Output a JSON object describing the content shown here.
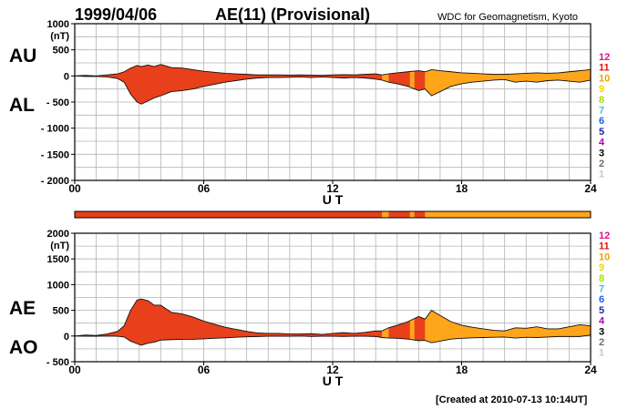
{
  "header": {
    "date": "1999/04/06",
    "title": "AE(11) (Provisional)",
    "source": "WDC for Geomagnetism, Kyoto"
  },
  "footer": {
    "created": "[Created at 2010-07-13 10:14UT]"
  },
  "legend": {
    "items": [
      {
        "label": "12",
        "color": "#e0118a"
      },
      {
        "label": "11",
        "color": "#e8120c"
      },
      {
        "label": "10",
        "color": "#f5a000"
      },
      {
        "label": "9",
        "color": "#e8d800"
      },
      {
        "label": "8",
        "color": "#a6e000"
      },
      {
        "label": "7",
        "color": "#36c8d8"
      },
      {
        "label": "6",
        "color": "#1f5fe0"
      },
      {
        "label": "5",
        "color": "#2323b0"
      },
      {
        "label": "4",
        "color": "#b000b0"
      },
      {
        "label": "3",
        "color": "#000000"
      },
      {
        "label": "2",
        "color": "#6e6e6e"
      },
      {
        "label": "1",
        "color": "#c8c8c8"
      }
    ]
  },
  "station_colors": {
    "11": "#e8401a",
    "10": "#ffa51a"
  },
  "chart_data": [
    {
      "type": "area",
      "ylabel": "(nT)",
      "xlabel": "U T",
      "ylim": [
        -2000,
        1000
      ],
      "yticks": [
        1000,
        500,
        0,
        -500,
        -1000,
        -1500,
        -2000
      ],
      "ytick_labels": [
        "1000",
        "500",
        "0",
        "- 500",
        "- 1000",
        "- 1500",
        "- 2000"
      ],
      "xlim": [
        0,
        24
      ],
      "xticks": [
        0,
        6,
        12,
        18,
        24
      ],
      "xtick_labels": [
        "00",
        "06",
        "12",
        "18",
        "24"
      ],
      "series_labels": {
        "upper": "AU",
        "lower": "AL"
      },
      "grid": true,
      "x": [
        0,
        0.5,
        1,
        1.5,
        2,
        2.3,
        2.6,
        2.9,
        3.1,
        3.4,
        3.7,
        4,
        4.5,
        5,
        5.5,
        6,
        6.5,
        7,
        7.5,
        8,
        8.5,
        9,
        9.5,
        10,
        10.5,
        11,
        11.5,
        12,
        12.5,
        13,
        13.5,
        14,
        14.3,
        14.6,
        15,
        15.5,
        16,
        16.3,
        16.6,
        17,
        17.5,
        18,
        18.5,
        19,
        19.5,
        20,
        20.5,
        21,
        21.5,
        22,
        22.5,
        23,
        23.5,
        24
      ],
      "upper": [
        0,
        10,
        0,
        20,
        40,
        80,
        150,
        200,
        180,
        210,
        180,
        220,
        160,
        150,
        120,
        90,
        70,
        50,
        40,
        30,
        20,
        20,
        20,
        15,
        20,
        15,
        10,
        20,
        25,
        20,
        30,
        40,
        20,
        40,
        60,
        80,
        100,
        80,
        120,
        100,
        80,
        60,
        50,
        40,
        30,
        30,
        40,
        50,
        60,
        50,
        60,
        80,
        100,
        120
      ],
      "lower": [
        0,
        -10,
        -10,
        -20,
        -50,
        -120,
        -350,
        -500,
        -540,
        -480,
        -420,
        -380,
        -300,
        -280,
        -250,
        -200,
        -160,
        -120,
        -90,
        -60,
        -40,
        -30,
        -30,
        -25,
        -20,
        -30,
        -20,
        -30,
        -40,
        -30,
        -40,
        -60,
        -80,
        -120,
        -150,
        -200,
        -280,
        -250,
        -380,
        -300,
        -200,
        -150,
        -120,
        -100,
        -80,
        -70,
        -120,
        -100,
        -120,
        -90,
        -80,
        -100,
        -120,
        -80
      ],
      "station_segments": [
        {
          "from": 0,
          "to": 14.3,
          "stations": 11
        },
        {
          "from": 14.3,
          "to": 14.6,
          "stations": 10
        },
        {
          "from": 14.6,
          "to": 15.6,
          "stations": 11
        },
        {
          "from": 15.6,
          "to": 15.8,
          "stations": 10
        },
        {
          "from": 15.8,
          "to": 16.3,
          "stations": 11
        },
        {
          "from": 16.3,
          "to": 24,
          "stations": 10
        }
      ]
    },
    {
      "type": "area",
      "ylabel": "(nT)",
      "xlabel": "U T",
      "ylim": [
        -500,
        2000
      ],
      "yticks": [
        2000,
        1500,
        1000,
        500,
        0,
        -500
      ],
      "ytick_labels": [
        "2000",
        "1500",
        "1000",
        "500",
        "0",
        "- 500"
      ],
      "xlim": [
        0,
        24
      ],
      "xticks": [
        0,
        6,
        12,
        18,
        24
      ],
      "xtick_labels": [
        "00",
        "06",
        "12",
        "18",
        "24"
      ],
      "series_labels": {
        "upper": "AE",
        "lower": "AO"
      },
      "grid": true,
      "x": [
        0,
        0.5,
        1,
        1.5,
        2,
        2.3,
        2.6,
        2.9,
        3.1,
        3.4,
        3.7,
        4,
        4.5,
        5,
        5.5,
        6,
        6.5,
        7,
        7.5,
        8,
        8.5,
        9,
        9.5,
        10,
        10.5,
        11,
        11.5,
        12,
        12.5,
        13,
        13.5,
        14,
        14.3,
        14.6,
        15,
        15.5,
        16,
        16.3,
        16.6,
        17,
        17.5,
        18,
        18.5,
        19,
        19.5,
        20,
        20.5,
        21,
        21.5,
        22,
        22.5,
        23,
        23.5,
        24
      ],
      "upper": [
        0,
        20,
        10,
        40,
        90,
        200,
        500,
        700,
        720,
        690,
        600,
        600,
        460,
        430,
        370,
        290,
        230,
        170,
        130,
        90,
        60,
        50,
        50,
        40,
        40,
        45,
        30,
        50,
        65,
        50,
        70,
        100,
        100,
        160,
        210,
        280,
        380,
        330,
        500,
        400,
        280,
        210,
        170,
        140,
        110,
        100,
        160,
        150,
        180,
        140,
        140,
        180,
        220,
        200
      ],
      "lower": [
        0,
        -5,
        -5,
        0,
        -5,
        -20,
        -100,
        -150,
        -180,
        -140,
        -120,
        -80,
        -70,
        -65,
        -65,
        -55,
        -45,
        -35,
        -25,
        -15,
        -10,
        -5,
        -5,
        -5,
        0,
        -8,
        -5,
        -5,
        -8,
        -5,
        -5,
        -10,
        -30,
        -40,
        -45,
        -60,
        -90,
        -85,
        -130,
        -100,
        -60,
        -45,
        -35,
        -30,
        -25,
        -20,
        -40,
        -25,
        -30,
        -20,
        -10,
        -10,
        -10,
        20
      ],
      "station_segments": [
        {
          "from": 0,
          "to": 14.3,
          "stations": 11
        },
        {
          "from": 14.3,
          "to": 14.6,
          "stations": 10
        },
        {
          "from": 14.6,
          "to": 15.6,
          "stations": 11
        },
        {
          "from": 15.6,
          "to": 15.8,
          "stations": 10
        },
        {
          "from": 15.8,
          "to": 16.3,
          "stations": 11
        },
        {
          "from": 16.3,
          "to": 24,
          "stations": 10
        }
      ]
    }
  ]
}
